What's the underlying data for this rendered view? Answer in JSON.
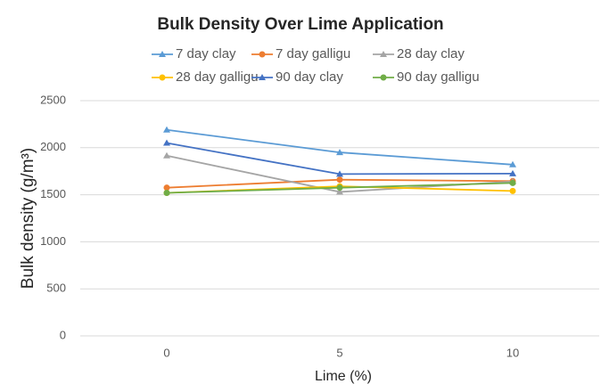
{
  "chart_data": {
    "type": "line",
    "title": "Bulk Density Over Lime Application",
    "x_label": "Lime (%)",
    "y_label": "Bulk density (g/m³)",
    "categories": [
      "0",
      "5",
      "10"
    ],
    "series": [
      {
        "name": "7 day clay",
        "color": "#5b9bd5",
        "marker": "triangle",
        "values": [
          2190,
          1950,
          1820
        ]
      },
      {
        "name": "7 day galligu",
        "color": "#ed7d31",
        "marker": "circle",
        "values": [
          1575,
          1660,
          1645
        ]
      },
      {
        "name": "28 day clay",
        "color": "#a5a5a5",
        "marker": "triangle",
        "values": [
          1915,
          1530,
          1640
        ]
      },
      {
        "name": "28 day galligu",
        "color": "#ffc000",
        "marker": "circle",
        "values": [
          1520,
          1590,
          1540
        ]
      },
      {
        "name": "90 day clay",
        "color": "#4472c4",
        "marker": "triangle",
        "values": [
          2050,
          1720,
          1725
        ]
      },
      {
        "name": "90 day galligu",
        "color": "#70ad47",
        "marker": "circle",
        "values": [
          1520,
          1575,
          1625
        ]
      }
    ],
    "ylim": [
      0,
      2500
    ],
    "yticks": [
      0,
      500,
      1000,
      1500,
      2000,
      2500
    ],
    "grid": true
  }
}
